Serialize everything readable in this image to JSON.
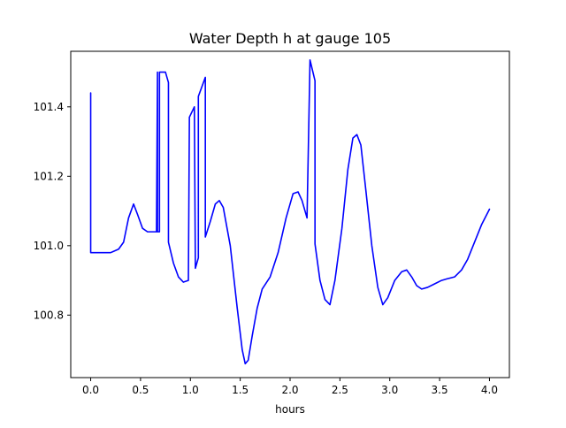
{
  "chart_data": {
    "type": "line",
    "title": "Water Depth h at gauge 105",
    "xlabel": "hours",
    "ylabel": "",
    "xlim": [
      -0.2,
      4.2
    ],
    "ylim": [
      100.62,
      101.56
    ],
    "x_ticks": [
      0.0,
      0.5,
      1.0,
      1.5,
      2.0,
      2.5,
      3.0,
      3.5,
      4.0
    ],
    "x_tick_labels": [
      "0.0",
      "0.5",
      "1.0",
      "1.5",
      "2.0",
      "2.5",
      "3.0",
      "3.5",
      "4.0"
    ],
    "y_ticks": [
      100.8,
      101.0,
      101.2,
      101.4
    ],
    "y_tick_labels": [
      "100.8",
      "101.0",
      "101.2",
      "101.4"
    ],
    "grid": false,
    "legend": "none",
    "series": [
      {
        "color": "#0000ff",
        "x": [
          0.0,
          0.0,
          0.0,
          0.1,
          0.2,
          0.28,
          0.33,
          0.38,
          0.43,
          0.47,
          0.52,
          0.57,
          0.62,
          0.66,
          0.67,
          0.67,
          0.69,
          0.69,
          0.7,
          0.7,
          0.75,
          0.78,
          0.78,
          0.83,
          0.88,
          0.93,
          0.98,
          0.99,
          0.99,
          1.04,
          1.05,
          1.05,
          1.08,
          1.08,
          1.15,
          1.15,
          1.2,
          1.25,
          1.29,
          1.33,
          1.4,
          1.47,
          1.52,
          1.55,
          1.58,
          1.62,
          1.67,
          1.72,
          1.8,
          1.88,
          1.96,
          2.03,
          2.08,
          2.12,
          2.17,
          2.2,
          2.2,
          2.25,
          2.25,
          2.3,
          2.35,
          2.4,
          2.45,
          2.52,
          2.58,
          2.63,
          2.67,
          2.71,
          2.76,
          2.82,
          2.88,
          2.93,
          2.98,
          3.05,
          3.12,
          3.17,
          3.22,
          3.27,
          3.32,
          3.38,
          3.45,
          3.52,
          3.58,
          3.65,
          3.72,
          3.78,
          3.85,
          3.92,
          4.0
        ],
        "y": [
          101.44,
          101.44,
          100.98,
          100.98,
          100.98,
          100.99,
          101.01,
          101.08,
          101.12,
          101.09,
          101.05,
          101.04,
          101.04,
          101.04,
          101.5,
          101.04,
          101.04,
          101.5,
          101.5,
          101.5,
          101.5,
          101.47,
          101.01,
          100.95,
          100.91,
          100.895,
          100.9,
          101.37,
          101.37,
          101.4,
          100.935,
          100.935,
          100.965,
          101.43,
          101.485,
          101.025,
          101.07,
          101.12,
          101.13,
          101.11,
          101.0,
          100.82,
          100.7,
          100.66,
          100.67,
          100.74,
          100.82,
          100.875,
          100.91,
          100.98,
          101.08,
          101.15,
          101.155,
          101.13,
          101.08,
          101.535,
          101.535,
          101.475,
          101.005,
          100.9,
          100.845,
          100.83,
          100.9,
          101.05,
          101.22,
          101.31,
          101.32,
          101.29,
          101.16,
          101.0,
          100.88,
          100.83,
          100.85,
          100.9,
          100.925,
          100.93,
          100.91,
          100.885,
          100.875,
          100.88,
          100.89,
          100.9,
          100.905,
          100.91,
          100.93,
          100.96,
          101.01,
          101.06,
          101.105
        ]
      }
    ]
  }
}
